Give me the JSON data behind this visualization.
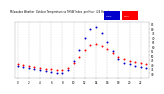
{
  "title": "Milwaukee Weather  Outdoor Temperature vs THSW Index  per Hour  (24 Hours)",
  "background_color": "#ffffff",
  "plot_bg_color": "#ffffff",
  "grid_color": "#aaaaaa",
  "hours": [
    0,
    1,
    2,
    3,
    4,
    5,
    6,
    7,
    8,
    9,
    10,
    11,
    12,
    13,
    14,
    15,
    16,
    17,
    18,
    19,
    20,
    21,
    22,
    23
  ],
  "temp_color": "#ff0000",
  "thsw_color": "#0000cc",
  "temp_values": [
    40,
    39,
    38,
    37,
    36,
    35,
    35,
    34,
    34,
    36,
    42,
    48,
    56,
    62,
    63,
    61,
    57,
    53,
    48,
    46,
    44,
    43,
    42,
    41
  ],
  "thsw_values": [
    38,
    37,
    36,
    35,
    34,
    33,
    32,
    31,
    31,
    34,
    44,
    56,
    70,
    80,
    82,
    75,
    65,
    55,
    46,
    42,
    40,
    38,
    37,
    36
  ],
  "ylim_min": 25,
  "ylim_max": 87,
  "xlim_min": -0.5,
  "xlim_max": 23.5,
  "ytick_values": [
    30,
    35,
    40,
    45,
    50,
    55,
    60,
    65,
    70,
    75,
    80,
    85
  ],
  "xtick_labels": [
    "0",
    "2",
    "4",
    "6",
    "8",
    "1",
    "3",
    "5",
    "7",
    "9",
    "1",
    "3"
  ],
  "xtick_hour_labels": [
    "0",
    "",
    "",
    "",
    "",
    "10",
    "",
    "",
    "",
    "",
    "20",
    ""
  ],
  "vgrid_positions": [
    0,
    2,
    4,
    6,
    8,
    10,
    12,
    14,
    16,
    18,
    20,
    22
  ],
  "legend_temp_label": "Temp",
  "legend_thsw_label": "THSW",
  "marker_size": 2.0
}
